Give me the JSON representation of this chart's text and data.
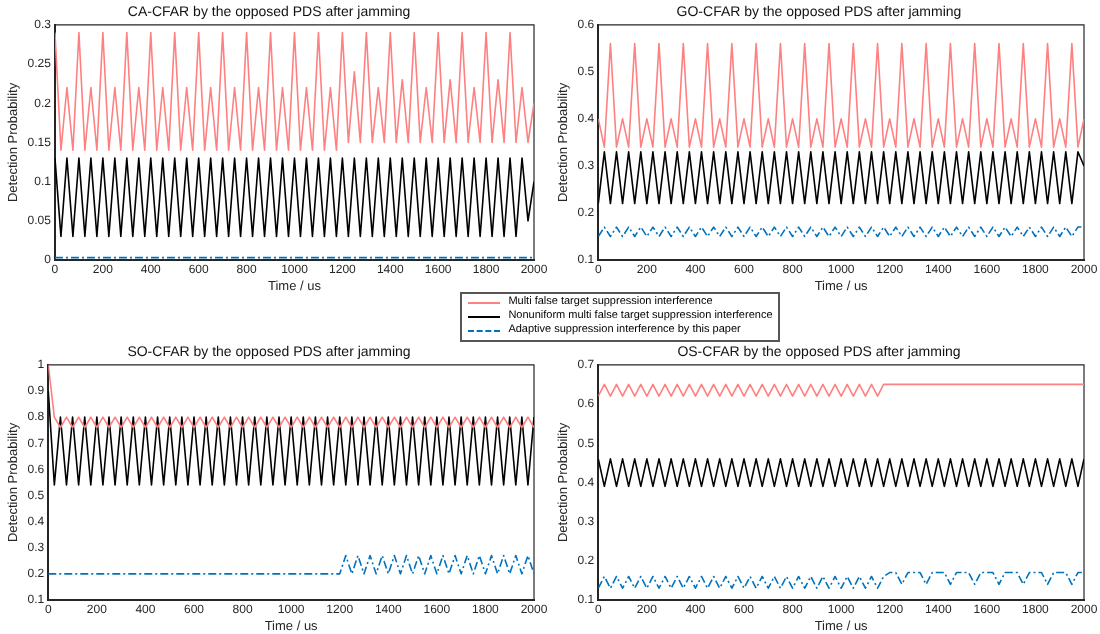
{
  "chart_data": [
    {
      "type": "line",
      "title": "CA-CFAR by the opposed PDS after jamming",
      "xlabel": "Time / us",
      "ylabel": "Detection Probability",
      "legend": "bottom right",
      "x": [
        0,
        25,
        50,
        75,
        100,
        125,
        150,
        175,
        200,
        225,
        250,
        275,
        300,
        325,
        350,
        375,
        400,
        425,
        450,
        475,
        500,
        525,
        550,
        575,
        600,
        625,
        650,
        675,
        700,
        725,
        750,
        775,
        800,
        825,
        850,
        875,
        900,
        925,
        950,
        975,
        1000,
        1025,
        1050,
        1075,
        1100,
        1125,
        1150,
        1175,
        1200,
        1225,
        1250,
        1275,
        1300,
        1325,
        1350,
        1375,
        1400,
        1425,
        1450,
        1475,
        1500,
        1525,
        1550,
        1575,
        1600,
        1625,
        1650,
        1675,
        1700,
        1725,
        1750,
        1775,
        1800,
        1825,
        1850,
        1875,
        1900,
        1925,
        1950,
        1975,
        2000
      ],
      "xlim": [
        0,
        2000
      ],
      "xticks": [
        0,
        200,
        400,
        600,
        800,
        1000,
        1200,
        1400,
        1600,
        1800,
        2000
      ],
      "ylim": [
        0,
        0.3
      ],
      "yticks": [
        0,
        0.05,
        0.1,
        0.15,
        0.2,
        0.25,
        0.3
      ],
      "series": [
        {
          "name": "Multi false target suppression interference",
          "color": "#ff8080",
          "line_style": "solid",
          "values": [
            0.29,
            0.14,
            0.22,
            0.14,
            0.29,
            0.14,
            0.22,
            0.14,
            0.29,
            0.14,
            0.22,
            0.14,
            0.29,
            0.14,
            0.22,
            0.14,
            0.29,
            0.14,
            0.22,
            0.14,
            0.29,
            0.14,
            0.22,
            0.14,
            0.29,
            0.14,
            0.22,
            0.14,
            0.29,
            0.14,
            0.22,
            0.14,
            0.29,
            0.14,
            0.22,
            0.14,
            0.29,
            0.14,
            0.22,
            0.14,
            0.29,
            0.14,
            0.22,
            0.14,
            0.29,
            0.14,
            0.22,
            0.14,
            0.29,
            0.15,
            0.24,
            0.15,
            0.29,
            0.15,
            0.22,
            0.15,
            0.29,
            0.15,
            0.23,
            0.15,
            0.29,
            0.15,
            0.22,
            0.15,
            0.29,
            0.15,
            0.23,
            0.15,
            0.29,
            0.15,
            0.22,
            0.15,
            0.29,
            0.15,
            0.23,
            0.15,
            0.29,
            0.15,
            0.22,
            0.15,
            0.2
          ]
        },
        {
          "name": "Nonuniform multi false target suppression interference",
          "color": "#000000",
          "line_style": "solid",
          "values": [
            0.13,
            0.03,
            0.13,
            0.03,
            0.13,
            0.03,
            0.13,
            0.03,
            0.13,
            0.03,
            0.13,
            0.03,
            0.13,
            0.03,
            0.13,
            0.03,
            0.13,
            0.03,
            0.13,
            0.03,
            0.13,
            0.03,
            0.13,
            0.03,
            0.13,
            0.03,
            0.13,
            0.03,
            0.13,
            0.03,
            0.13,
            0.03,
            0.13,
            0.03,
            0.13,
            0.03,
            0.13,
            0.03,
            0.13,
            0.03,
            0.13,
            0.03,
            0.13,
            0.03,
            0.13,
            0.03,
            0.13,
            0.03,
            0.13,
            0.03,
            0.13,
            0.03,
            0.13,
            0.03,
            0.13,
            0.03,
            0.13,
            0.03,
            0.13,
            0.03,
            0.13,
            0.03,
            0.13,
            0.03,
            0.13,
            0.03,
            0.13,
            0.03,
            0.13,
            0.03,
            0.13,
            0.03,
            0.13,
            0.03,
            0.13,
            0.03,
            0.13,
            0.03,
            0.13,
            0.05,
            0.1
          ]
        },
        {
          "name": "Adaptive suppression interference by this paper",
          "color": "#0072bd",
          "line_style": "dashed",
          "values": [
            0.003,
            0.003,
            0.003,
            0.003,
            0.003,
            0.003,
            0.003,
            0.003,
            0.003,
            0.003,
            0.003,
            0.003,
            0.003,
            0.003,
            0.003,
            0.003,
            0.003,
            0.003,
            0.003,
            0.003,
            0.003,
            0.003,
            0.003,
            0.003,
            0.003,
            0.003,
            0.003,
            0.003,
            0.003,
            0.003,
            0.003,
            0.003,
            0.003,
            0.003,
            0.003,
            0.003,
            0.003,
            0.003,
            0.003,
            0.003,
            0.003,
            0.003,
            0.003,
            0.003,
            0.003,
            0.003,
            0.003,
            0.003,
            0.003,
            0.003,
            0.003,
            0.003,
            0.003,
            0.003,
            0.003,
            0.003,
            0.003,
            0.003,
            0.003,
            0.003,
            0.003,
            0.003,
            0.003,
            0.003,
            0.003,
            0.003,
            0.003,
            0.003,
            0.003,
            0.003,
            0.003,
            0.003,
            0.003,
            0.003,
            0.003,
            0.003,
            0.003,
            0.003,
            0.003,
            0.003,
            0.003
          ]
        }
      ]
    },
    {
      "type": "line",
      "title": "GO-CFAR by the opposed PDS after jamming",
      "xlabel": "Time / us",
      "ylabel": "Detection Probability",
      "x": [
        0,
        25,
        50,
        75,
        100,
        125,
        150,
        175,
        200,
        225,
        250,
        275,
        300,
        325,
        350,
        375,
        400,
        425,
        450,
        475,
        500,
        525,
        550,
        575,
        600,
        625,
        650,
        675,
        700,
        725,
        750,
        775,
        800,
        825,
        850,
        875,
        900,
        925,
        950,
        975,
        1000,
        1025,
        1050,
        1075,
        1100,
        1125,
        1150,
        1175,
        1200,
        1225,
        1250,
        1275,
        1300,
        1325,
        1350,
        1375,
        1400,
        1425,
        1450,
        1475,
        1500,
        1525,
        1550,
        1575,
        1600,
        1625,
        1650,
        1675,
        1700,
        1725,
        1750,
        1775,
        1800,
        1825,
        1850,
        1875,
        1900,
        1925,
        1950,
        1975,
        2000
      ],
      "xlim": [
        0,
        2000
      ],
      "xticks": [
        0,
        200,
        400,
        600,
        800,
        1000,
        1200,
        1400,
        1600,
        1800,
        2000
      ],
      "ylim": [
        0.1,
        0.6
      ],
      "yticks": [
        0.1,
        0.2,
        0.3,
        0.4,
        0.5,
        0.6
      ],
      "series": [
        {
          "color": "#ff8080",
          "line_style": "solid",
          "values": [
            0.4,
            0.34,
            0.56,
            0.34,
            0.4,
            0.34,
            0.56,
            0.34,
            0.4,
            0.34,
            0.56,
            0.34,
            0.4,
            0.34,
            0.56,
            0.34,
            0.4,
            0.34,
            0.56,
            0.34,
            0.4,
            0.34,
            0.56,
            0.34,
            0.4,
            0.34,
            0.56,
            0.34,
            0.4,
            0.34,
            0.56,
            0.34,
            0.4,
            0.34,
            0.56,
            0.34,
            0.4,
            0.34,
            0.56,
            0.34,
            0.4,
            0.34,
            0.56,
            0.34,
            0.4,
            0.34,
            0.56,
            0.34,
            0.4,
            0.34,
            0.56,
            0.34,
            0.4,
            0.34,
            0.56,
            0.34,
            0.4,
            0.34,
            0.56,
            0.34,
            0.4,
            0.34,
            0.56,
            0.34,
            0.4,
            0.34,
            0.56,
            0.34,
            0.4,
            0.34,
            0.56,
            0.34,
            0.4,
            0.34,
            0.56,
            0.34,
            0.4,
            0.34,
            0.56,
            0.34,
            0.4
          ]
        },
        {
          "color": "#000000",
          "line_style": "solid",
          "values": [
            0.22,
            0.33,
            0.22,
            0.33,
            0.22,
            0.33,
            0.22,
            0.33,
            0.22,
            0.33,
            0.22,
            0.33,
            0.22,
            0.33,
            0.22,
            0.33,
            0.22,
            0.33,
            0.22,
            0.33,
            0.22,
            0.33,
            0.22,
            0.33,
            0.22,
            0.33,
            0.22,
            0.33,
            0.22,
            0.33,
            0.22,
            0.33,
            0.22,
            0.33,
            0.22,
            0.33,
            0.22,
            0.33,
            0.22,
            0.33,
            0.22,
            0.33,
            0.22,
            0.33,
            0.22,
            0.33,
            0.22,
            0.33,
            0.22,
            0.33,
            0.22,
            0.33,
            0.22,
            0.33,
            0.22,
            0.33,
            0.22,
            0.33,
            0.22,
            0.33,
            0.22,
            0.33,
            0.22,
            0.33,
            0.22,
            0.33,
            0.22,
            0.33,
            0.22,
            0.33,
            0.22,
            0.33,
            0.22,
            0.33,
            0.22,
            0.33,
            0.22,
            0.33,
            0.22,
            0.33,
            0.3
          ]
        },
        {
          "color": "#0072bd",
          "line_style": "dashed",
          "values": [
            0.15,
            0.17,
            0.15,
            0.17,
            0.15,
            0.17,
            0.15,
            0.17,
            0.15,
            0.17,
            0.15,
            0.17,
            0.15,
            0.17,
            0.15,
            0.17,
            0.15,
            0.17,
            0.15,
            0.17,
            0.15,
            0.17,
            0.15,
            0.17,
            0.15,
            0.17,
            0.15,
            0.17,
            0.15,
            0.17,
            0.15,
            0.17,
            0.15,
            0.17,
            0.15,
            0.17,
            0.15,
            0.17,
            0.15,
            0.17,
            0.15,
            0.17,
            0.15,
            0.17,
            0.15,
            0.17,
            0.15,
            0.17,
            0.15,
            0.17,
            0.15,
            0.17,
            0.15,
            0.17,
            0.15,
            0.17,
            0.15,
            0.17,
            0.15,
            0.17,
            0.15,
            0.17,
            0.15,
            0.17,
            0.15,
            0.17,
            0.15,
            0.17,
            0.15,
            0.17,
            0.15,
            0.17,
            0.15,
            0.17,
            0.15,
            0.17,
            0.15,
            0.17,
            0.15,
            0.17,
            0.17
          ]
        }
      ]
    },
    {
      "type": "line",
      "title": "SO-CFAR by the opposed PDS after jamming",
      "xlabel": "Time / us",
      "ylabel": "Detection Probability",
      "x": [
        0,
        25,
        50,
        75,
        100,
        125,
        150,
        175,
        200,
        225,
        250,
        275,
        300,
        325,
        350,
        375,
        400,
        425,
        450,
        475,
        500,
        525,
        550,
        575,
        600,
        625,
        650,
        675,
        700,
        725,
        750,
        775,
        800,
        825,
        850,
        875,
        900,
        925,
        950,
        975,
        1000,
        1025,
        1050,
        1075,
        1100,
        1125,
        1150,
        1175,
        1200,
        1225,
        1250,
        1275,
        1300,
        1325,
        1350,
        1375,
        1400,
        1425,
        1450,
        1475,
        1500,
        1525,
        1550,
        1575,
        1600,
        1625,
        1650,
        1675,
        1700,
        1725,
        1750,
        1775,
        1800,
        1825,
        1850,
        1875,
        1900,
        1925,
        1950,
        1975,
        2000
      ],
      "xlim": [
        0,
        2000
      ],
      "xticks": [
        0,
        200,
        400,
        600,
        800,
        1000,
        1200,
        1400,
        1600,
        1800,
        2000
      ],
      "ylim": [
        0.1,
        1
      ],
      "yticks": [
        0.1,
        0.2,
        0.3,
        0.4,
        0.5,
        0.6,
        0.7,
        0.8,
        0.9,
        1
      ],
      "series": [
        {
          "color": "#ff8080",
          "line_style": "solid",
          "values": [
            1,
            0.8,
            0.76,
            0.8,
            0.76,
            0.8,
            0.76,
            0.8,
            0.76,
            0.8,
            0.76,
            0.8,
            0.76,
            0.8,
            0.76,
            0.8,
            0.76,
            0.8,
            0.76,
            0.8,
            0.76,
            0.8,
            0.76,
            0.8,
            0.76,
            0.8,
            0.76,
            0.8,
            0.76,
            0.8,
            0.76,
            0.8,
            0.76,
            0.8,
            0.76,
            0.8,
            0.76,
            0.8,
            0.76,
            0.8,
            0.76,
            0.8,
            0.76,
            0.8,
            0.76,
            0.8,
            0.76,
            0.8,
            0.76,
            0.8,
            0.76,
            0.8,
            0.76,
            0.8,
            0.76,
            0.8,
            0.76,
            0.8,
            0.76,
            0.8,
            0.76,
            0.8,
            0.76,
            0.8,
            0.76,
            0.8,
            0.76,
            0.8,
            0.76,
            0.8,
            0.76,
            0.8,
            0.76,
            0.8,
            0.76,
            0.8,
            0.76,
            0.8,
            0.76,
            0.8,
            0.76
          ]
        },
        {
          "color": "#000000",
          "line_style": "solid",
          "values": [
            0.9,
            0.54,
            0.8,
            0.54,
            0.8,
            0.54,
            0.8,
            0.54,
            0.8,
            0.54,
            0.8,
            0.54,
            0.8,
            0.54,
            0.8,
            0.54,
            0.8,
            0.54,
            0.8,
            0.54,
            0.8,
            0.54,
            0.8,
            0.54,
            0.8,
            0.54,
            0.8,
            0.54,
            0.8,
            0.54,
            0.8,
            0.54,
            0.8,
            0.54,
            0.8,
            0.54,
            0.8,
            0.54,
            0.8,
            0.54,
            0.8,
            0.54,
            0.8,
            0.54,
            0.8,
            0.54,
            0.8,
            0.54,
            0.8,
            0.54,
            0.8,
            0.54,
            0.8,
            0.54,
            0.8,
            0.54,
            0.8,
            0.54,
            0.8,
            0.54,
            0.8,
            0.54,
            0.8,
            0.54,
            0.8,
            0.54,
            0.8,
            0.54,
            0.8,
            0.54,
            0.8,
            0.54,
            0.8,
            0.54,
            0.8,
            0.54,
            0.8,
            0.54,
            0.8,
            0.54,
            0.8
          ]
        },
        {
          "color": "#0072bd",
          "line_style": "dashed",
          "values": [
            0.2,
            0.2,
            0.2,
            0.2,
            0.2,
            0.2,
            0.2,
            0.2,
            0.2,
            0.2,
            0.2,
            0.2,
            0.2,
            0.2,
            0.2,
            0.2,
            0.2,
            0.2,
            0.2,
            0.2,
            0.2,
            0.2,
            0.2,
            0.2,
            0.2,
            0.2,
            0.2,
            0.2,
            0.2,
            0.2,
            0.2,
            0.2,
            0.2,
            0.2,
            0.2,
            0.2,
            0.2,
            0.2,
            0.2,
            0.2,
            0.2,
            0.2,
            0.2,
            0.2,
            0.2,
            0.2,
            0.2,
            0.2,
            0.2,
            0.27,
            0.2,
            0.27,
            0.2,
            0.27,
            0.2,
            0.27,
            0.2,
            0.27,
            0.2,
            0.27,
            0.2,
            0.27,
            0.2,
            0.27,
            0.2,
            0.27,
            0.2,
            0.27,
            0.2,
            0.27,
            0.2,
            0.27,
            0.2,
            0.27,
            0.2,
            0.27,
            0.2,
            0.27,
            0.2,
            0.27,
            0.2
          ]
        }
      ]
    },
    {
      "type": "line",
      "title": "OS-CFAR by the opposed PDS after jamming",
      "xlabel": "Time / us",
      "ylabel": "Detection Probability",
      "x": [
        0,
        25,
        50,
        75,
        100,
        125,
        150,
        175,
        200,
        225,
        250,
        275,
        300,
        325,
        350,
        375,
        400,
        425,
        450,
        475,
        500,
        525,
        550,
        575,
        600,
        625,
        650,
        675,
        700,
        725,
        750,
        775,
        800,
        825,
        850,
        875,
        900,
        925,
        950,
        975,
        1000,
        1025,
        1050,
        1075,
        1100,
        1125,
        1150,
        1175,
        1200,
        1225,
        1250,
        1275,
        1300,
        1325,
        1350,
        1375,
        1400,
        1425,
        1450,
        1475,
        1500,
        1525,
        1550,
        1575,
        1600,
        1625,
        1650,
        1675,
        1700,
        1725,
        1750,
        1775,
        1800,
        1825,
        1850,
        1875,
        1900,
        1925,
        1950,
        1975,
        2000
      ],
      "xlim": [
        0,
        2000
      ],
      "xticks": [
        0,
        200,
        400,
        600,
        800,
        1000,
        1200,
        1400,
        1600,
        1800,
        2000
      ],
      "ylim": [
        0.1,
        0.7
      ],
      "yticks": [
        0.1,
        0.2,
        0.3,
        0.4,
        0.5,
        0.6,
        0.7
      ],
      "series": [
        {
          "color": "#ff8080",
          "line_style": "solid",
          "values": [
            0.62,
            0.65,
            0.62,
            0.65,
            0.62,
            0.65,
            0.62,
            0.65,
            0.62,
            0.65,
            0.62,
            0.65,
            0.62,
            0.65,
            0.62,
            0.65,
            0.62,
            0.65,
            0.62,
            0.65,
            0.62,
            0.65,
            0.62,
            0.65,
            0.62,
            0.65,
            0.62,
            0.65,
            0.62,
            0.65,
            0.62,
            0.65,
            0.62,
            0.65,
            0.62,
            0.65,
            0.62,
            0.65,
            0.62,
            0.65,
            0.62,
            0.65,
            0.62,
            0.65,
            0.62,
            0.65,
            0.62,
            0.65,
            0.65,
            0.65,
            0.65,
            0.65,
            0.65,
            0.65,
            0.65,
            0.65,
            0.65,
            0.65,
            0.65,
            0.65,
            0.65,
            0.65,
            0.65,
            0.65,
            0.65,
            0.65,
            0.65,
            0.65,
            0.65,
            0.65,
            0.65,
            0.65,
            0.65,
            0.65,
            0.65,
            0.65,
            0.65,
            0.65,
            0.65,
            0.65,
            0.65
          ]
        },
        {
          "color": "#000000",
          "line_style": "solid",
          "values": [
            0.46,
            0.39,
            0.46,
            0.39,
            0.46,
            0.39,
            0.46,
            0.39,
            0.46,
            0.39,
            0.46,
            0.39,
            0.46,
            0.39,
            0.46,
            0.39,
            0.46,
            0.39,
            0.46,
            0.39,
            0.46,
            0.39,
            0.46,
            0.39,
            0.46,
            0.39,
            0.46,
            0.39,
            0.46,
            0.39,
            0.46,
            0.39,
            0.46,
            0.39,
            0.46,
            0.39,
            0.46,
            0.39,
            0.46,
            0.39,
            0.46,
            0.39,
            0.46,
            0.39,
            0.46,
            0.39,
            0.46,
            0.39,
            0.46,
            0.39,
            0.46,
            0.39,
            0.46,
            0.39,
            0.46,
            0.39,
            0.46,
            0.39,
            0.46,
            0.39,
            0.46,
            0.39,
            0.46,
            0.39,
            0.46,
            0.39,
            0.46,
            0.39,
            0.46,
            0.39,
            0.46,
            0.39,
            0.46,
            0.39,
            0.46,
            0.39,
            0.46,
            0.39,
            0.46,
            0.39,
            0.46
          ]
        },
        {
          "color": "#0072bd",
          "line_style": "dashed",
          "values": [
            0.13,
            0.16,
            0.13,
            0.16,
            0.13,
            0.16,
            0.13,
            0.16,
            0.13,
            0.16,
            0.13,
            0.16,
            0.13,
            0.16,
            0.13,
            0.16,
            0.13,
            0.16,
            0.13,
            0.16,
            0.13,
            0.16,
            0.13,
            0.16,
            0.13,
            0.16,
            0.13,
            0.16,
            0.13,
            0.16,
            0.13,
            0.16,
            0.13,
            0.16,
            0.13,
            0.16,
            0.13,
            0.16,
            0.13,
            0.16,
            0.13,
            0.16,
            0.13,
            0.16,
            0.13,
            0.16,
            0.13,
            0.16,
            0.17,
            0.17,
            0.14,
            0.17,
            0.17,
            0.17,
            0.14,
            0.17,
            0.17,
            0.17,
            0.14,
            0.17,
            0.17,
            0.17,
            0.14,
            0.17,
            0.17,
            0.17,
            0.14,
            0.17,
            0.17,
            0.17,
            0.14,
            0.17,
            0.17,
            0.17,
            0.14,
            0.17,
            0.17,
            0.17,
            0.14,
            0.17,
            0.17
          ]
        }
      ]
    }
  ]
}
